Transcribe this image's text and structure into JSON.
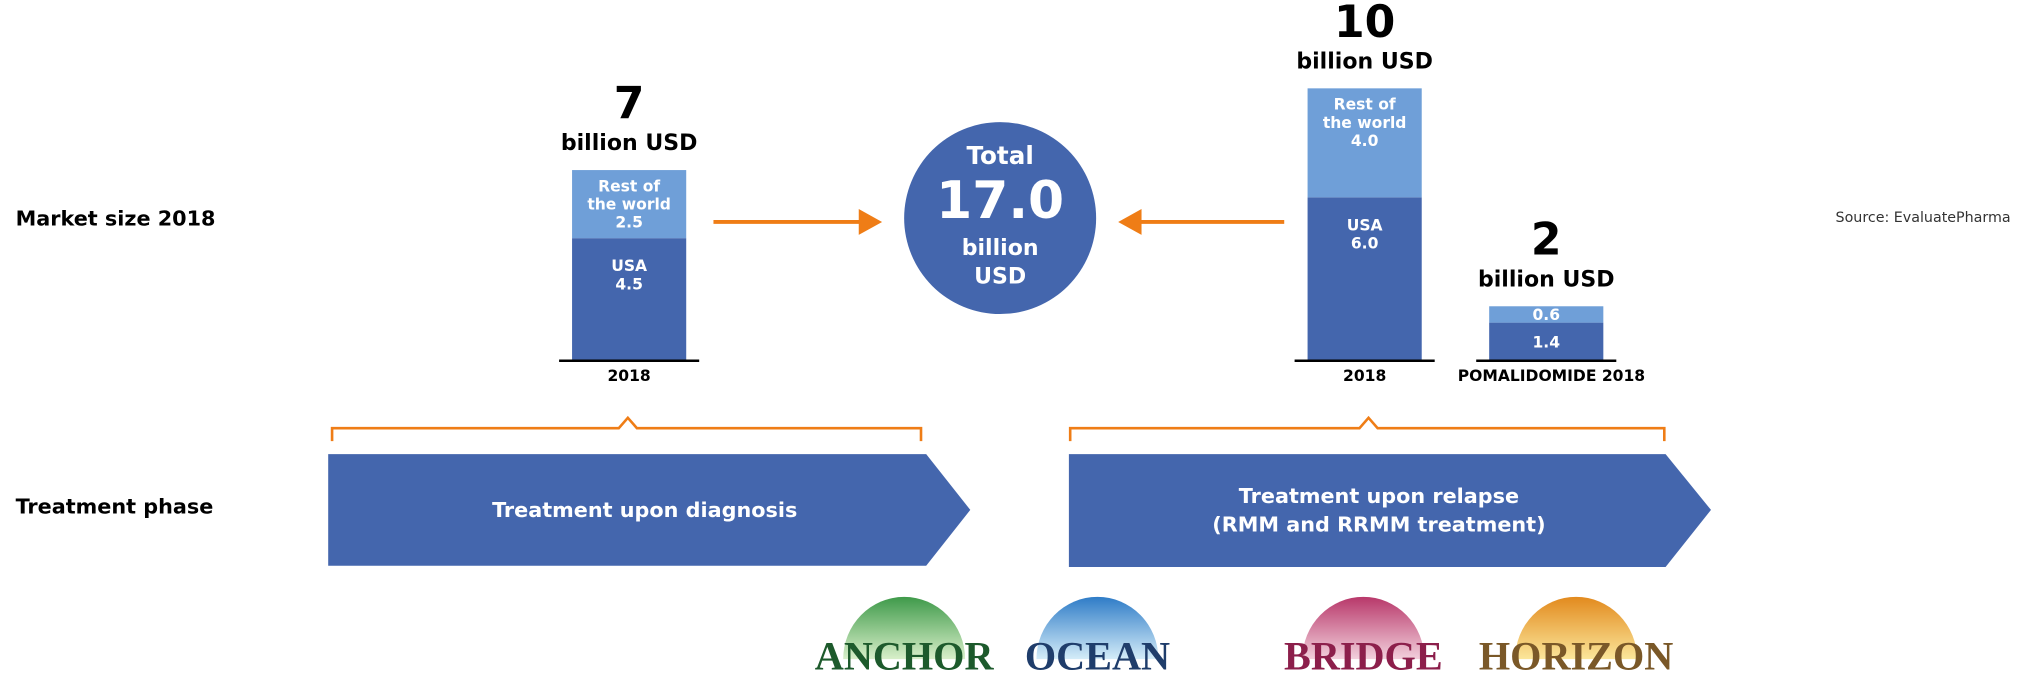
{
  "rows": [
    "Market size 2018",
    "Treatment phase"
  ],
  "source": "Source: EvaluatePharma",
  "total": {
    "label": "Total",
    "value": "17.0",
    "unit_lines": [
      "billion",
      "USD"
    ]
  },
  "bars": [
    {
      "total": 7,
      "unit": "billion USD",
      "x_label": "2018",
      "segments": [
        {
          "label_lines": [
            "USA"
          ],
          "value": 4.5
        },
        {
          "label_lines": [
            "Rest of",
            "the world"
          ],
          "value": 2.5
        }
      ]
    },
    {
      "total": 10,
      "unit": "billion USD",
      "x_label": "2018",
      "segments": [
        {
          "label_lines": [
            "USA"
          ],
          "value": 6,
          "value_label": "6.0"
        },
        {
          "label_lines": [
            "Rest of",
            "the world"
          ],
          "value": 4,
          "value_label": "4.0"
        }
      ]
    },
    {
      "total": 2,
      "unit": "billion USD",
      "x_label": "POMALIDOMIDE 2018",
      "segments": [
        {
          "label_lines": [],
          "value": 1.4
        },
        {
          "label_lines": [],
          "value": 0.6
        }
      ]
    }
  ],
  "phases": [
    {
      "lines": [
        "Treatment upon diagnosis"
      ]
    },
    {
      "lines": [
        "Treatment upon relapse",
        "(RMM and RRMM treatment)"
      ]
    }
  ],
  "trials": [
    {
      "name": "ANCHOR",
      "color": "#1d5a2c",
      "dome": [
        "#d8efc9",
        "#3f9a4a"
      ]
    },
    {
      "name": "OCEAN",
      "color": "#1f3d6b",
      "dome": [
        "#d4ecf8",
        "#2f7cc7"
      ]
    },
    {
      "name": "BRIDGE",
      "color": "#8c1f4b",
      "dome": [
        "#f2d0dc",
        "#b8386a"
      ]
    },
    {
      "name": "HORIZON",
      "color": "#7a5828",
      "dome": [
        "#fbe69a",
        "#e28a1e"
      ]
    }
  ]
}
